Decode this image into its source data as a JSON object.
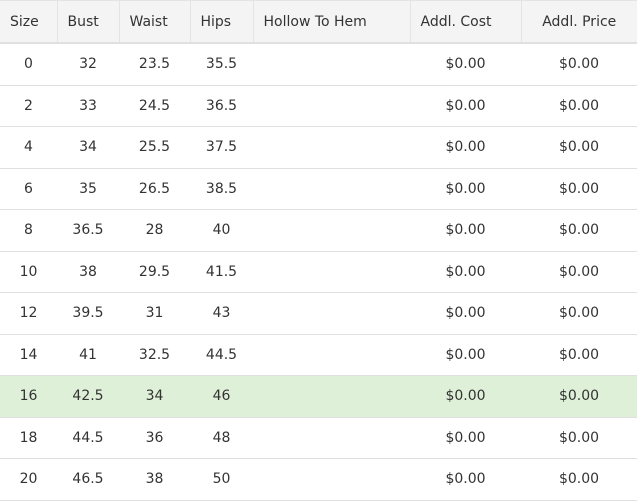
{
  "headers": [
    "Size",
    "Bust",
    "Waist",
    "Hips",
    "Hollow To Hem",
    "Addl. Cost",
    "Addl. Price"
  ],
  "highlight_color": "#dff0d8",
  "rows": [
    {
      "size": "0",
      "bust": "32",
      "waist": "23.5",
      "hips": "35.5",
      "hollow": "",
      "cost": "$0.00",
      "price": "$0.00",
      "highlighted": false
    },
    {
      "size": "2",
      "bust": "33",
      "waist": "24.5",
      "hips": "36.5",
      "hollow": "",
      "cost": "$0.00",
      "price": "$0.00",
      "highlighted": false
    },
    {
      "size": "4",
      "bust": "34",
      "waist": "25.5",
      "hips": "37.5",
      "hollow": "",
      "cost": "$0.00",
      "price": "$0.00",
      "highlighted": false
    },
    {
      "size": "6",
      "bust": "35",
      "waist": "26.5",
      "hips": "38.5",
      "hollow": "",
      "cost": "$0.00",
      "price": "$0.00",
      "highlighted": false
    },
    {
      "size": "8",
      "bust": "36.5",
      "waist": "28",
      "hips": "40",
      "hollow": "",
      "cost": "$0.00",
      "price": "$0.00",
      "highlighted": false
    },
    {
      "size": "10",
      "bust": "38",
      "waist": "29.5",
      "hips": "41.5",
      "hollow": "",
      "cost": "$0.00",
      "price": "$0.00",
      "highlighted": false
    },
    {
      "size": "12",
      "bust": "39.5",
      "waist": "31",
      "hips": "43",
      "hollow": "",
      "cost": "$0.00",
      "price": "$0.00",
      "highlighted": false
    },
    {
      "size": "14",
      "bust": "41",
      "waist": "32.5",
      "hips": "44.5",
      "hollow": "",
      "cost": "$0.00",
      "price": "$0.00",
      "highlighted": false
    },
    {
      "size": "16",
      "bust": "42.5",
      "waist": "34",
      "hips": "46",
      "hollow": "",
      "cost": "$0.00",
      "price": "$0.00",
      "highlighted": true
    },
    {
      "size": "18",
      "bust": "44.5",
      "waist": "36",
      "hips": "48",
      "hollow": "",
      "cost": "$0.00",
      "price": "$0.00",
      "highlighted": false
    },
    {
      "size": "20",
      "bust": "46.5",
      "waist": "38",
      "hips": "50",
      "hollow": "",
      "cost": "$0.00",
      "price": "$0.00",
      "highlighted": false
    }
  ]
}
